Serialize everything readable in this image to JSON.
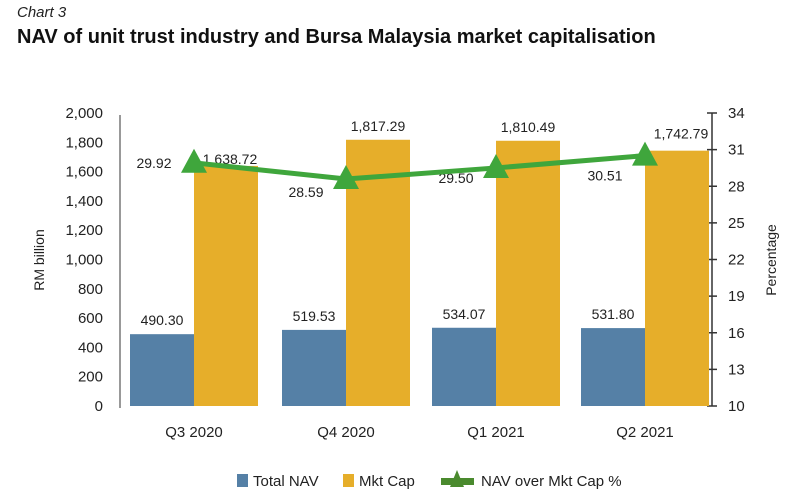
{
  "subtitle": "Chart 3",
  "title": "NAV of unit trust industry and Bursa Malaysia market capitalisation",
  "chart_data": {
    "type": "bar",
    "title": "NAV of unit trust industry and Bursa Malaysia market capitalisation",
    "categories": [
      "Q3 2020",
      "Q4 2020",
      "Q1 2021",
      "Q2 2021"
    ],
    "series": [
      {
        "name": "Total NAV",
        "type": "bar",
        "axis": "left",
        "color": "#5580a6",
        "values": [
          490.3,
          519.53,
          534.07,
          531.8
        ],
        "labels": [
          "490.30",
          "519.53",
          "534.07",
          "531.80"
        ]
      },
      {
        "name": "Mkt Cap",
        "type": "bar",
        "axis": "left",
        "color": "#e6ae2a",
        "values": [
          1638.72,
          1817.29,
          1810.49,
          1742.79
        ],
        "labels": [
          "1,638.72",
          "1,817.29",
          "1,810.49",
          "1,742.79"
        ]
      },
      {
        "name": "NAV over Mkt Cap %",
        "type": "line",
        "axis": "right",
        "color": "#3fa63c",
        "values": [
          29.92,
          28.59,
          29.5,
          30.51
        ],
        "labels": [
          "29.92",
          "28.59",
          "29.50",
          "30.51"
        ]
      }
    ],
    "ylabel": "RM billion",
    "ylim": [
      0,
      2000
    ],
    "yticks": [
      "0",
      "200",
      "400",
      "600",
      "800",
      "1,000",
      "1,200",
      "1,400",
      "1,600",
      "1,800",
      "2,000"
    ],
    "y2label": "Percentage",
    "y2lim": [
      10,
      34
    ],
    "y2ticks": [
      "10",
      "13",
      "16",
      "19",
      "22",
      "25",
      "28",
      "31",
      "34"
    ],
    "legend": "bottom"
  }
}
